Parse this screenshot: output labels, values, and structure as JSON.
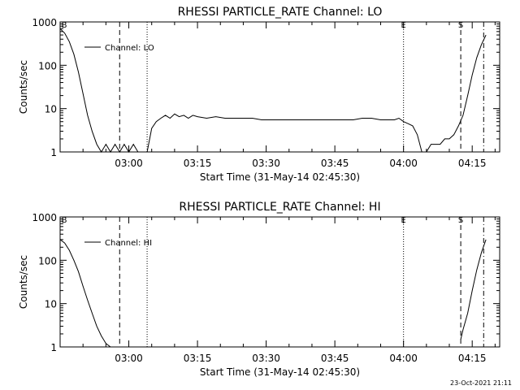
{
  "timestamp": "23-Oct-2021 21:11",
  "chart_data": [
    {
      "type": "line",
      "title": "RHESSI PARTICLE_RATE Channel: LO",
      "xlabel": "Start Time (31-May-14 02:45:30)",
      "ylabel": "Counts/sec",
      "yscale": "log",
      "ylim": [
        1,
        1000
      ],
      "yticks": [
        1,
        10,
        100,
        1000
      ],
      "yticklabels": [
        "1",
        "10",
        "100",
        "1000"
      ],
      "xlim_minutes": [
        0,
        96
      ],
      "xticks_minutes": [
        15,
        30,
        45,
        60,
        75,
        90
      ],
      "xticklabels": [
        "03:00",
        "03:15",
        "03:30",
        "03:45",
        "04:00",
        "04:15"
      ],
      "legend": {
        "label": "Channel: LO",
        "position": "top-left"
      },
      "markers": [
        {
          "label": "E",
          "minute": 75,
          "style": "dotted"
        },
        {
          "label": "S",
          "minute": 87.5,
          "style": "dashed"
        },
        {
          "label": "B",
          "minute": 0,
          "style": "none"
        }
      ],
      "vlines": [
        {
          "minute": 13,
          "style": "dashed"
        },
        {
          "minute": 19,
          "style": "dotted"
        },
        {
          "minute": 75,
          "style": "dotted"
        },
        {
          "minute": 87.5,
          "style": "dashed"
        },
        {
          "minute": 92.5,
          "style": "dashdot"
        }
      ],
      "series": [
        {
          "name": "Channel: LO",
          "x": [
            0,
            1,
            2,
            3,
            4,
            5,
            6,
            7,
            8,
            9,
            10,
            11,
            12,
            13,
            14,
            15,
            16,
            17,
            18,
            19,
            20,
            21,
            22,
            23,
            24,
            25,
            26,
            27,
            28,
            29,
            30,
            32,
            34,
            36,
            38,
            40,
            42,
            44,
            46,
            48,
            50,
            52,
            54,
            56,
            58,
            60,
            62,
            64,
            66,
            68,
            70,
            72,
            73,
            74,
            75,
            76,
            77,
            78,
            79,
            80,
            81,
            82,
            83,
            84,
            85,
            86,
            87,
            88,
            89,
            90,
            91,
            92,
            93
          ],
          "y": [
            700,
            550,
            350,
            180,
            70,
            22,
            7,
            3,
            1.5,
            1,
            1.5,
            1,
            1.5,
            1,
            1.5,
            1,
            1.5,
            1,
            1,
            1,
            3.5,
            5,
            6,
            7,
            6,
            7.5,
            6.5,
            7,
            6,
            7,
            6.5,
            6,
            6.5,
            6,
            6,
            6,
            6,
            5.5,
            5.5,
            5.5,
            5.5,
            5.5,
            5.5,
            5.5,
            5.5,
            5.5,
            5.5,
            5.5,
            6,
            6,
            5.5,
            5.5,
            5.5,
            6,
            5,
            4.5,
            4,
            2.5,
            1,
            1,
            1.5,
            1.5,
            1.5,
            2,
            2,
            2.5,
            4,
            7,
            20,
            60,
            150,
            300,
            500
          ]
        }
      ]
    },
    {
      "type": "line",
      "title": "RHESSI PARTICLE_RATE Channel: HI",
      "xlabel": "Start Time (31-May-14 02:45:30)",
      "ylabel": "Counts/sec",
      "yscale": "log",
      "ylim": [
        1,
        1000
      ],
      "yticks": [
        1,
        10,
        100,
        1000
      ],
      "yticklabels": [
        "1",
        "10",
        "100",
        "1000"
      ],
      "xlim_minutes": [
        0,
        96
      ],
      "xticks_minutes": [
        15,
        30,
        45,
        60,
        75,
        90
      ],
      "xticklabels": [
        "03:00",
        "03:15",
        "03:30",
        "03:45",
        "04:00",
        "04:15"
      ],
      "legend": {
        "label": "Channel: HI",
        "position": "top-left"
      },
      "markers": [
        {
          "label": "E",
          "minute": 75,
          "style": "dotted"
        },
        {
          "label": "S",
          "minute": 87.5,
          "style": "dashed"
        },
        {
          "label": "B",
          "minute": 0,
          "style": "none"
        }
      ],
      "vlines": [
        {
          "minute": 13,
          "style": "dashed"
        },
        {
          "minute": 19,
          "style": "dotted"
        },
        {
          "minute": 75,
          "style": "dotted"
        },
        {
          "minute": 87.5,
          "style": "dashed"
        },
        {
          "minute": 92.5,
          "style": "dashdot"
        }
      ],
      "series": [
        {
          "name": "Channel: HI",
          "segments": [
            {
              "x": [
                0,
                1,
                2,
                3,
                4,
                5,
                6,
                7,
                8,
                9,
                10,
                11
              ],
              "y": [
                300,
                250,
                170,
                100,
                55,
                25,
                12,
                6,
                3,
                1.8,
                1.2,
                0.8
              ]
            },
            {
              "x": [
                87.5,
                88,
                89,
                90,
                91,
                92,
                93
              ],
              "y": [
                1.5,
                2.5,
                6,
                20,
                60,
                150,
                300
              ]
            }
          ]
        }
      ]
    }
  ]
}
